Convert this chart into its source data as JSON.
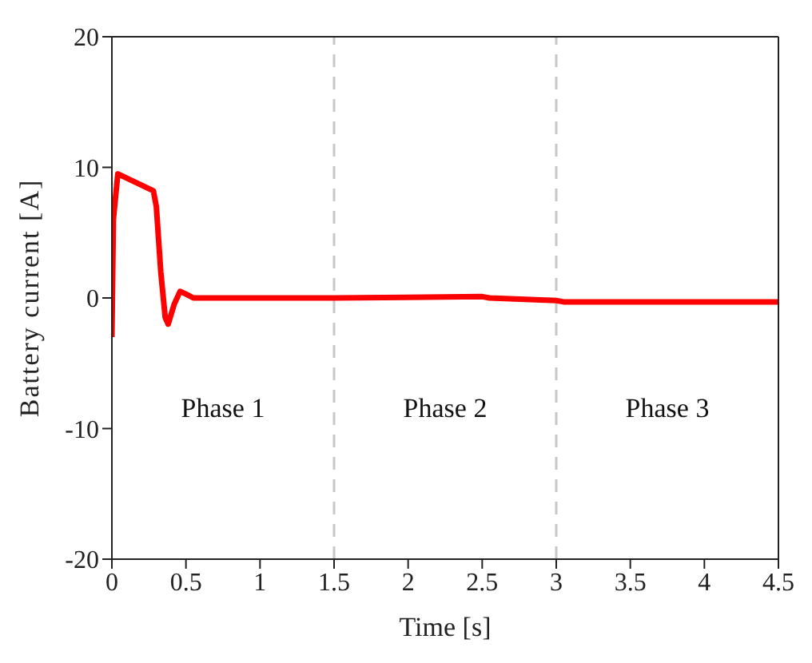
{
  "chart_data": {
    "type": "line",
    "xlabel": "Time [s]",
    "ylabel": "Battery current [A]",
    "xlim": [
      0,
      4.5
    ],
    "xticks": [
      0,
      0.5,
      1,
      1.5,
      2,
      2.5,
      3,
      3.5,
      4,
      4.5
    ],
    "ylim": [
      -20,
      20
    ],
    "yticks": [
      -20,
      -10,
      0,
      10,
      20
    ],
    "marker": "none",
    "line_style": "solid",
    "series": [
      {
        "color": "#ff0000",
        "x": [
          0,
          0.01,
          0.04,
          0.28,
          0.3,
          0.33,
          0.36,
          0.38,
          0.42,
          0.46,
          0.5,
          0.55,
          1,
          1.5,
          2.5,
          2.55,
          3,
          3.05,
          4.5
        ],
        "values": [
          -3,
          6,
          9.5,
          8.2,
          7,
          2,
          -1.5,
          -2,
          -0.5,
          0.5,
          0.3,
          0,
          0,
          0,
          0.1,
          0,
          -0.2,
          -0.3,
          -0.3
        ]
      }
    ],
    "ref_lines": [
      {
        "axis": "x",
        "value": 1.5,
        "color": "#c8c8c8",
        "line_style": "dashed"
      },
      {
        "axis": "x",
        "value": 3,
        "color": "#c8c8c8",
        "line_style": "dashed"
      }
    ],
    "annotations": [
      "Phase 1",
      "Phase 2",
      "Phase 3"
    ]
  }
}
